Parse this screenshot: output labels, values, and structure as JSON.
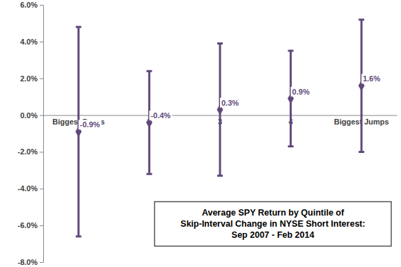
{
  "chart_data": {
    "type": "errorbar",
    "title": [
      "Average SPY Return by Quintile of",
      "Skip-Interval Change in NYSE Short Interest:",
      "Sep 2007 - Feb 2014"
    ],
    "categories": [
      "Biggest Drops",
      "2",
      "3",
      "4",
      "Biggest Jumps"
    ],
    "values": [
      -0.9,
      -0.4,
      0.3,
      0.9,
      1.6
    ],
    "value_labels": [
      "-0.9%",
      "-0.4%",
      "0.3%",
      "0.9%",
      "1.6%"
    ],
    "errors": [
      5.7,
      2.8,
      3.6,
      2.6,
      3.6
    ],
    "color": "#60497a",
    "marker": "diamond",
    "data_labels": true,
    "grid": false,
    "ylim": [
      -8,
      6
    ],
    "yticks": [
      {
        "value": -8,
        "label": "-8.0%"
      },
      {
        "value": -6,
        "label": "-6.0%"
      },
      {
        "value": -4,
        "label": "-4.0%"
      },
      {
        "value": -2,
        "label": "-2.0%"
      },
      {
        "value": 0,
        "label": "0.0%"
      },
      {
        "value": 2,
        "label": "2.0%"
      },
      {
        "value": 4,
        "label": "4.0%"
      },
      {
        "value": 6,
        "label": "6.0%"
      }
    ]
  }
}
